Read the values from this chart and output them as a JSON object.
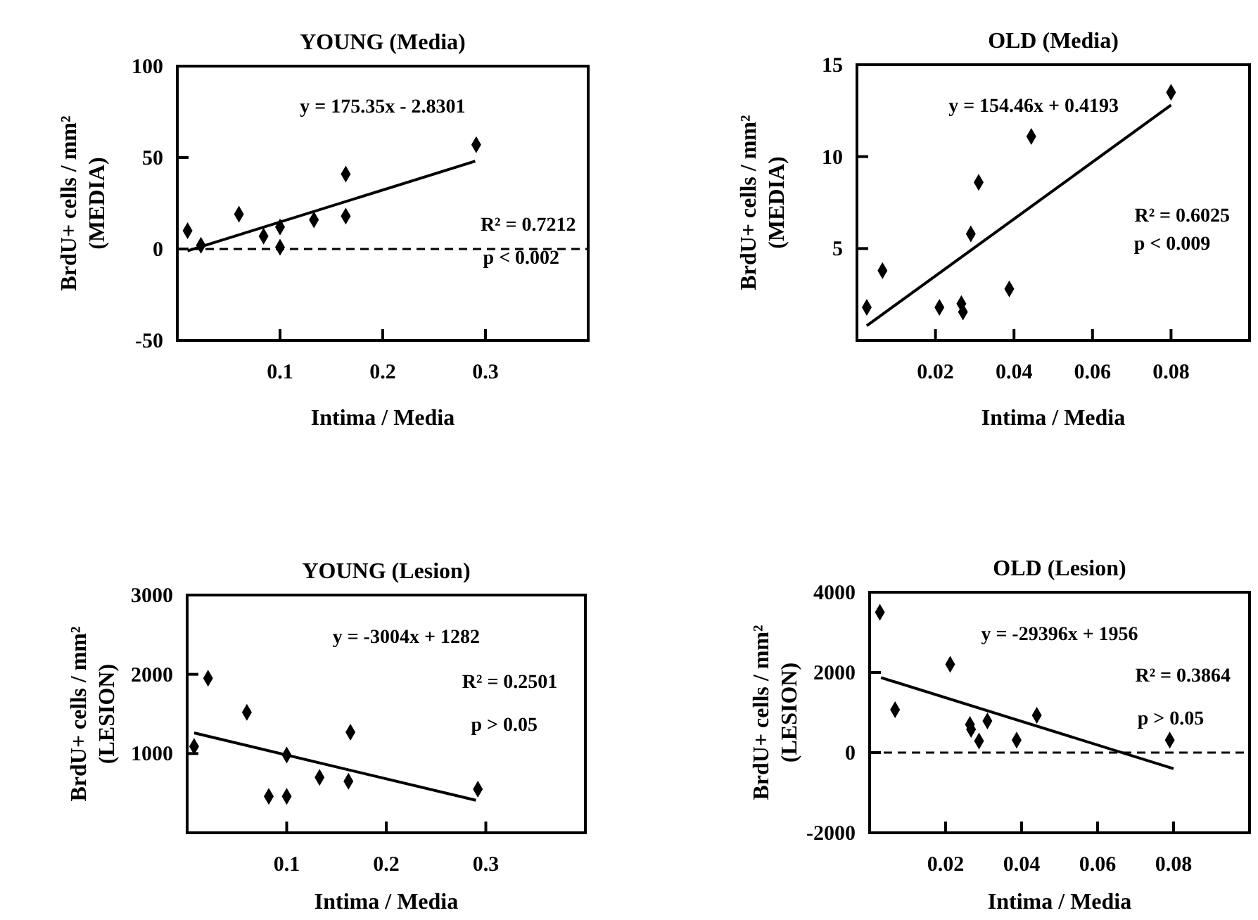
{
  "chart_data": [
    {
      "type": "scatter",
      "title": "YOUNG (Media)",
      "xlabel": "Intima / Media",
      "ylabel": "BrdU+ cells / mm²\n(MEDIA)",
      "xlim": [
        0,
        0.4
      ],
      "ylim": [
        -50,
        100
      ],
      "xticks": [
        0.1,
        0.2,
        0.3
      ],
      "yticks": [
        -50,
        0,
        50,
        100
      ],
      "marker": "diamond",
      "annotations": [
        "y = 175.35x - 2.8301",
        "R² = 0.7212",
        "p < 0.002"
      ],
      "ref_lines": [
        {
          "axis": "y",
          "value": 0,
          "line_style": "dashed"
        }
      ],
      "series": [
        {
          "color": "#000000",
          "x": [
            0.01,
            0.023,
            0.06,
            0.084,
            0.1,
            0.1,
            0.133,
            0.164,
            0.164,
            0.291
          ],
          "values": [
            10,
            2,
            19,
            7,
            12,
            1,
            16,
            18,
            41,
            57
          ]
        },
        {
          "type": "line",
          "color": "#000000",
          "x": [
            0.01,
            0.29
          ],
          "values": [
            -1,
            48
          ],
          "marker": "none"
        }
      ]
    },
    {
      "type": "scatter",
      "title": "OLD (Media)",
      "xlabel": "Intima / Media",
      "ylabel": "BrdU+ cells / mm²\n(MEDIA)",
      "xlim": [
        0,
        0.1
      ],
      "ylim": [
        0,
        15
      ],
      "xticks": [
        0.02,
        0.04,
        0.06,
        0.08
      ],
      "yticks": [
        5,
        10,
        15
      ],
      "marker": "diamond",
      "annotations": [
        "y = 154.46x + 0.4193",
        "R² = 0.6025",
        "p < 0.009"
      ],
      "series": [
        {
          "color": "#000000",
          "x": [
            0.0025,
            0.0065,
            0.021,
            0.0266,
            0.027,
            0.029,
            0.031,
            0.0388,
            0.0444,
            0.08
          ],
          "values": [
            1.8,
            3.8,
            1.8,
            2.0,
            1.55,
            5.8,
            8.6,
            2.8,
            11.1,
            13.5
          ]
        },
        {
          "type": "line",
          "color": "#000000",
          "x": [
            0.0025,
            0.08
          ],
          "values": [
            0.8,
            12.8
          ],
          "marker": "none"
        }
      ]
    },
    {
      "type": "scatter",
      "title": "YOUNG (Lesion)",
      "xlabel": "Intima / Media",
      "ylabel": "BrdU+ cells / mm²\n(LESION)",
      "xlim": [
        0,
        0.4
      ],
      "ylim": [
        0,
        3000
      ],
      "xticks": [
        0.1,
        0.2,
        0.3
      ],
      "yticks": [
        1000,
        2000,
        3000
      ],
      "marker": "diamond",
      "annotations": [
        "y = -3004x + 1282",
        "R² = 0.2501",
        "p > 0.05"
      ],
      "series": [
        {
          "color": "#000000",
          "x": [
            0.007,
            0.021,
            0.06,
            0.082,
            0.1,
            0.1,
            0.133,
            0.162,
            0.164,
            0.292
          ],
          "values": [
            1090,
            1950,
            1520,
            460,
            980,
            460,
            700,
            650,
            1270,
            550
          ]
        },
        {
          "type": "line",
          "color": "#000000",
          "x": [
            0.007,
            0.29
          ],
          "values": [
            1260,
            410
          ],
          "marker": "none"
        }
      ]
    },
    {
      "type": "scatter",
      "title": "OLD (Lesion)",
      "xlabel": "Intima / Media",
      "ylabel": "BrdU+ cells / mm²\n(LESION)",
      "xlim": [
        0,
        0.1
      ],
      "ylim": [
        -2000,
        4000
      ],
      "xticks": [
        0.02,
        0.04,
        0.06,
        0.08
      ],
      "yticks": [
        -2000,
        0,
        2000,
        4000
      ],
      "marker": "diamond",
      "annotations": [
        "y = -29396x + 1956",
        "R² = 0.3864",
        "p > 0.05"
      ],
      "ref_lines": [
        {
          "axis": "y",
          "value": 0,
          "line_style": "dashed"
        }
      ],
      "series": [
        {
          "color": "#000000",
          "x": [
            0.0027,
            0.0067,
            0.0212,
            0.0264,
            0.0267,
            0.0288,
            0.031,
            0.0387,
            0.044,
            0.079
          ],
          "values": [
            3500,
            1070,
            2200,
            700,
            580,
            290,
            790,
            310,
            930,
            310
          ]
        },
        {
          "type": "line",
          "color": "#000000",
          "x": [
            0.003,
            0.08
          ],
          "values": [
            1870,
            -400
          ],
          "marker": "none"
        }
      ]
    }
  ]
}
